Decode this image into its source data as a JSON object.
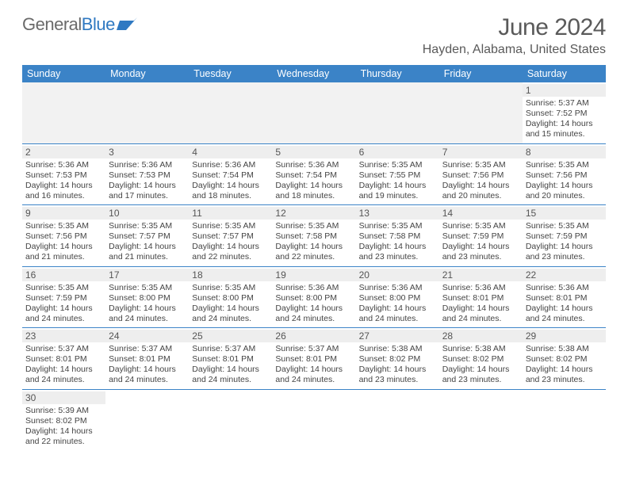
{
  "logo": {
    "text1": "General",
    "text2": "Blue"
  },
  "title": "June 2024",
  "location": "Hayden, Alabama, United States",
  "day_headers": [
    "Sunday",
    "Monday",
    "Tuesday",
    "Wednesday",
    "Thursday",
    "Friday",
    "Saturday"
  ],
  "colors": {
    "header_bg": "#3b83c7",
    "header_text": "#ffffff",
    "cell_border": "#3b83c7",
    "daynum_bg": "#eeeeee",
    "logo_gray": "#6a6a6a",
    "logo_blue": "#2f79c2"
  },
  "weeks": [
    [
      null,
      null,
      null,
      null,
      null,
      null,
      {
        "n": "1",
        "sunrise": "Sunrise: 5:37 AM",
        "sunset": "Sunset: 7:52 PM",
        "daylight": "Daylight: 14 hours and 15 minutes."
      }
    ],
    [
      {
        "n": "2",
        "sunrise": "Sunrise: 5:36 AM",
        "sunset": "Sunset: 7:53 PM",
        "daylight": "Daylight: 14 hours and 16 minutes."
      },
      {
        "n": "3",
        "sunrise": "Sunrise: 5:36 AM",
        "sunset": "Sunset: 7:53 PM",
        "daylight": "Daylight: 14 hours and 17 minutes."
      },
      {
        "n": "4",
        "sunrise": "Sunrise: 5:36 AM",
        "sunset": "Sunset: 7:54 PM",
        "daylight": "Daylight: 14 hours and 18 minutes."
      },
      {
        "n": "5",
        "sunrise": "Sunrise: 5:36 AM",
        "sunset": "Sunset: 7:54 PM",
        "daylight": "Daylight: 14 hours and 18 minutes."
      },
      {
        "n": "6",
        "sunrise": "Sunrise: 5:35 AM",
        "sunset": "Sunset: 7:55 PM",
        "daylight": "Daylight: 14 hours and 19 minutes."
      },
      {
        "n": "7",
        "sunrise": "Sunrise: 5:35 AM",
        "sunset": "Sunset: 7:56 PM",
        "daylight": "Daylight: 14 hours and 20 minutes."
      },
      {
        "n": "8",
        "sunrise": "Sunrise: 5:35 AM",
        "sunset": "Sunset: 7:56 PM",
        "daylight": "Daylight: 14 hours and 20 minutes."
      }
    ],
    [
      {
        "n": "9",
        "sunrise": "Sunrise: 5:35 AM",
        "sunset": "Sunset: 7:56 PM",
        "daylight": "Daylight: 14 hours and 21 minutes."
      },
      {
        "n": "10",
        "sunrise": "Sunrise: 5:35 AM",
        "sunset": "Sunset: 7:57 PM",
        "daylight": "Daylight: 14 hours and 21 minutes."
      },
      {
        "n": "11",
        "sunrise": "Sunrise: 5:35 AM",
        "sunset": "Sunset: 7:57 PM",
        "daylight": "Daylight: 14 hours and 22 minutes."
      },
      {
        "n": "12",
        "sunrise": "Sunrise: 5:35 AM",
        "sunset": "Sunset: 7:58 PM",
        "daylight": "Daylight: 14 hours and 22 minutes."
      },
      {
        "n": "13",
        "sunrise": "Sunrise: 5:35 AM",
        "sunset": "Sunset: 7:58 PM",
        "daylight": "Daylight: 14 hours and 23 minutes."
      },
      {
        "n": "14",
        "sunrise": "Sunrise: 5:35 AM",
        "sunset": "Sunset: 7:59 PM",
        "daylight": "Daylight: 14 hours and 23 minutes."
      },
      {
        "n": "15",
        "sunrise": "Sunrise: 5:35 AM",
        "sunset": "Sunset: 7:59 PM",
        "daylight": "Daylight: 14 hours and 23 minutes."
      }
    ],
    [
      {
        "n": "16",
        "sunrise": "Sunrise: 5:35 AM",
        "sunset": "Sunset: 7:59 PM",
        "daylight": "Daylight: 14 hours and 24 minutes."
      },
      {
        "n": "17",
        "sunrise": "Sunrise: 5:35 AM",
        "sunset": "Sunset: 8:00 PM",
        "daylight": "Daylight: 14 hours and 24 minutes."
      },
      {
        "n": "18",
        "sunrise": "Sunrise: 5:35 AM",
        "sunset": "Sunset: 8:00 PM",
        "daylight": "Daylight: 14 hours and 24 minutes."
      },
      {
        "n": "19",
        "sunrise": "Sunrise: 5:36 AM",
        "sunset": "Sunset: 8:00 PM",
        "daylight": "Daylight: 14 hours and 24 minutes."
      },
      {
        "n": "20",
        "sunrise": "Sunrise: 5:36 AM",
        "sunset": "Sunset: 8:00 PM",
        "daylight": "Daylight: 14 hours and 24 minutes."
      },
      {
        "n": "21",
        "sunrise": "Sunrise: 5:36 AM",
        "sunset": "Sunset: 8:01 PM",
        "daylight": "Daylight: 14 hours and 24 minutes."
      },
      {
        "n": "22",
        "sunrise": "Sunrise: 5:36 AM",
        "sunset": "Sunset: 8:01 PM",
        "daylight": "Daylight: 14 hours and 24 minutes."
      }
    ],
    [
      {
        "n": "23",
        "sunrise": "Sunrise: 5:37 AM",
        "sunset": "Sunset: 8:01 PM",
        "daylight": "Daylight: 14 hours and 24 minutes."
      },
      {
        "n": "24",
        "sunrise": "Sunrise: 5:37 AM",
        "sunset": "Sunset: 8:01 PM",
        "daylight": "Daylight: 14 hours and 24 minutes."
      },
      {
        "n": "25",
        "sunrise": "Sunrise: 5:37 AM",
        "sunset": "Sunset: 8:01 PM",
        "daylight": "Daylight: 14 hours and 24 minutes."
      },
      {
        "n": "26",
        "sunrise": "Sunrise: 5:37 AM",
        "sunset": "Sunset: 8:01 PM",
        "daylight": "Daylight: 14 hours and 24 minutes."
      },
      {
        "n": "27",
        "sunrise": "Sunrise: 5:38 AM",
        "sunset": "Sunset: 8:02 PM",
        "daylight": "Daylight: 14 hours and 23 minutes."
      },
      {
        "n": "28",
        "sunrise": "Sunrise: 5:38 AM",
        "sunset": "Sunset: 8:02 PM",
        "daylight": "Daylight: 14 hours and 23 minutes."
      },
      {
        "n": "29",
        "sunrise": "Sunrise: 5:38 AM",
        "sunset": "Sunset: 8:02 PM",
        "daylight": "Daylight: 14 hours and 23 minutes."
      }
    ],
    [
      {
        "n": "30",
        "sunrise": "Sunrise: 5:39 AM",
        "sunset": "Sunset: 8:02 PM",
        "daylight": "Daylight: 14 hours and 22 minutes."
      },
      null,
      null,
      null,
      null,
      null,
      null
    ]
  ]
}
